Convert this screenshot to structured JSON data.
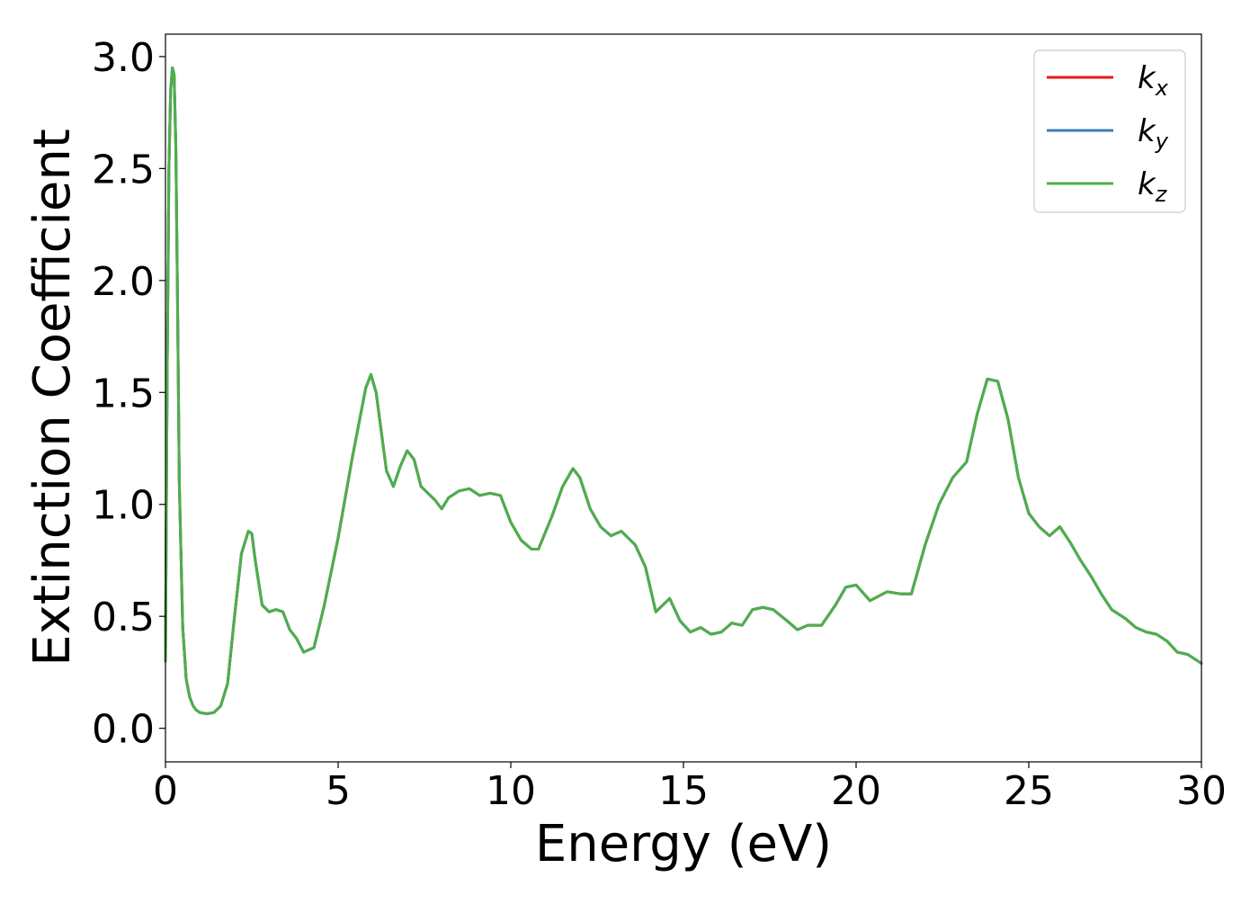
{
  "chart_data": {
    "type": "line",
    "title": "",
    "xlabel": "Energy (eV)",
    "ylabel": "Extinction Coefficient",
    "xlim": [
      0,
      30
    ],
    "ylim": [
      -0.15,
      3.1
    ],
    "xticks": [
      0,
      5,
      10,
      15,
      20,
      25,
      30
    ],
    "xtick_labels": [
      "0",
      "5",
      "10",
      "15",
      "20",
      "25",
      "30"
    ],
    "yticks": [
      0.0,
      0.5,
      1.0,
      1.5,
      2.0,
      2.5,
      3.0
    ],
    "ytick_labels": [
      "0.0",
      "0.5",
      "1.0",
      "1.5",
      "2.0",
      "2.5",
      "3.0"
    ],
    "grid": false,
    "legend_position": "top-right",
    "colors": {
      "kx": "#e41a1c",
      "ky": "#377eb8",
      "kz": "#4daf4a"
    },
    "legend": [
      {
        "base": "k",
        "sub": "x",
        "color": "#e41a1c"
      },
      {
        "base": "k",
        "sub": "y",
        "color": "#377eb8"
      },
      {
        "base": "k",
        "sub": "z",
        "color": "#4daf4a"
      }
    ],
    "x": [
      0,
      0.05,
      0.1,
      0.15,
      0.2,
      0.25,
      0.3,
      0.35,
      0.4,
      0.5,
      0.6,
      0.7,
      0.8,
      0.9,
      1.0,
      1.2,
      1.4,
      1.6,
      1.8,
      2.0,
      2.2,
      2.4,
      2.5,
      2.6,
      2.8,
      3.0,
      3.2,
      3.4,
      3.6,
      3.8,
      4.0,
      4.3,
      4.6,
      5.0,
      5.4,
      5.8,
      5.95,
      6.1,
      6.4,
      6.6,
      6.8,
      7.0,
      7.2,
      7.4,
      7.6,
      7.8,
      8.0,
      8.2,
      8.5,
      8.8,
      9.1,
      9.4,
      9.7,
      10.0,
      10.3,
      10.6,
      10.8,
      11.2,
      11.5,
      11.8,
      12.0,
      12.3,
      12.6,
      12.9,
      13.2,
      13.6,
      13.9,
      14.2,
      14.6,
      14.9,
      15.2,
      15.5,
      15.8,
      16.1,
      16.4,
      16.7,
      17.0,
      17.3,
      17.6,
      18.0,
      18.3,
      18.6,
      19.0,
      19.4,
      19.7,
      20.0,
      20.4,
      20.9,
      21.3,
      21.6,
      22.0,
      22.4,
      22.8,
      23.2,
      23.5,
      23.8,
      24.1,
      24.4,
      24.7,
      25.0,
      25.3,
      25.6,
      25.9,
      26.2,
      26.5,
      26.8,
      27.1,
      27.4,
      27.8,
      28.1,
      28.4,
      28.7,
      29.0,
      29.3,
      29.6,
      30.0
    ],
    "series": [
      {
        "name": "kx",
        "values": [
          0.3,
          1.6,
          2.5,
          2.85,
          2.95,
          2.92,
          2.6,
          1.9,
          1.1,
          0.45,
          0.22,
          0.14,
          0.1,
          0.08,
          0.07,
          0.065,
          0.07,
          0.1,
          0.2,
          0.5,
          0.78,
          0.88,
          0.87,
          0.75,
          0.55,
          0.52,
          0.53,
          0.52,
          0.44,
          0.4,
          0.34,
          0.36,
          0.55,
          0.85,
          1.2,
          1.52,
          1.58,
          1.5,
          1.15,
          1.08,
          1.17,
          1.24,
          1.2,
          1.08,
          1.05,
          1.02,
          0.98,
          1.03,
          1.06,
          1.07,
          1.04,
          1.05,
          1.04,
          0.92,
          0.84,
          0.8,
          0.8,
          0.95,
          1.08,
          1.16,
          1.12,
          0.98,
          0.9,
          0.86,
          0.88,
          0.82,
          0.72,
          0.52,
          0.58,
          0.48,
          0.43,
          0.45,
          0.42,
          0.43,
          0.47,
          0.46,
          0.53,
          0.54,
          0.53,
          0.48,
          0.44,
          0.46,
          0.46,
          0.55,
          0.63,
          0.64,
          0.57,
          0.61,
          0.6,
          0.6,
          0.82,
          1.0,
          1.12,
          1.19,
          1.4,
          1.56,
          1.55,
          1.38,
          1.12,
          0.96,
          0.9,
          0.86,
          0.9,
          0.83,
          0.75,
          0.68,
          0.6,
          0.53,
          0.49,
          0.45,
          0.43,
          0.42,
          0.39,
          0.34,
          0.33,
          0.29
        ]
      },
      {
        "name": "ky",
        "values": [
          0.3,
          1.6,
          2.5,
          2.85,
          2.95,
          2.92,
          2.6,
          1.9,
          1.1,
          0.45,
          0.22,
          0.14,
          0.1,
          0.08,
          0.07,
          0.065,
          0.07,
          0.1,
          0.2,
          0.5,
          0.78,
          0.88,
          0.87,
          0.75,
          0.55,
          0.52,
          0.53,
          0.52,
          0.44,
          0.4,
          0.34,
          0.36,
          0.55,
          0.85,
          1.2,
          1.52,
          1.58,
          1.5,
          1.15,
          1.08,
          1.17,
          1.24,
          1.2,
          1.08,
          1.05,
          1.02,
          0.98,
          1.03,
          1.06,
          1.07,
          1.04,
          1.05,
          1.04,
          0.92,
          0.84,
          0.8,
          0.8,
          0.95,
          1.08,
          1.16,
          1.12,
          0.98,
          0.9,
          0.86,
          0.88,
          0.82,
          0.72,
          0.52,
          0.58,
          0.48,
          0.43,
          0.45,
          0.42,
          0.43,
          0.47,
          0.46,
          0.53,
          0.54,
          0.53,
          0.48,
          0.44,
          0.46,
          0.46,
          0.55,
          0.63,
          0.64,
          0.57,
          0.61,
          0.6,
          0.6,
          0.82,
          1.0,
          1.12,
          1.19,
          1.4,
          1.56,
          1.55,
          1.38,
          1.12,
          0.96,
          0.9,
          0.86,
          0.9,
          0.83,
          0.75,
          0.68,
          0.6,
          0.53,
          0.49,
          0.45,
          0.43,
          0.42,
          0.39,
          0.34,
          0.33,
          0.29
        ]
      },
      {
        "name": "kz",
        "values": [
          0.3,
          1.6,
          2.5,
          2.85,
          2.95,
          2.92,
          2.6,
          1.9,
          1.1,
          0.45,
          0.22,
          0.14,
          0.1,
          0.08,
          0.07,
          0.065,
          0.07,
          0.1,
          0.2,
          0.5,
          0.78,
          0.88,
          0.87,
          0.75,
          0.55,
          0.52,
          0.53,
          0.52,
          0.44,
          0.4,
          0.34,
          0.36,
          0.55,
          0.85,
          1.2,
          1.52,
          1.58,
          1.5,
          1.15,
          1.08,
          1.17,
          1.24,
          1.2,
          1.08,
          1.05,
          1.02,
          0.98,
          1.03,
          1.06,
          1.07,
          1.04,
          1.05,
          1.04,
          0.92,
          0.84,
          0.8,
          0.8,
          0.95,
          1.08,
          1.16,
          1.12,
          0.98,
          0.9,
          0.86,
          0.88,
          0.82,
          0.72,
          0.52,
          0.58,
          0.48,
          0.43,
          0.45,
          0.42,
          0.43,
          0.47,
          0.46,
          0.53,
          0.54,
          0.53,
          0.48,
          0.44,
          0.46,
          0.46,
          0.55,
          0.63,
          0.64,
          0.57,
          0.61,
          0.6,
          0.6,
          0.82,
          1.0,
          1.12,
          1.19,
          1.4,
          1.56,
          1.55,
          1.38,
          1.12,
          0.96,
          0.9,
          0.86,
          0.9,
          0.83,
          0.75,
          0.68,
          0.6,
          0.53,
          0.49,
          0.45,
          0.43,
          0.42,
          0.39,
          0.34,
          0.33,
          0.29
        ]
      }
    ]
  }
}
